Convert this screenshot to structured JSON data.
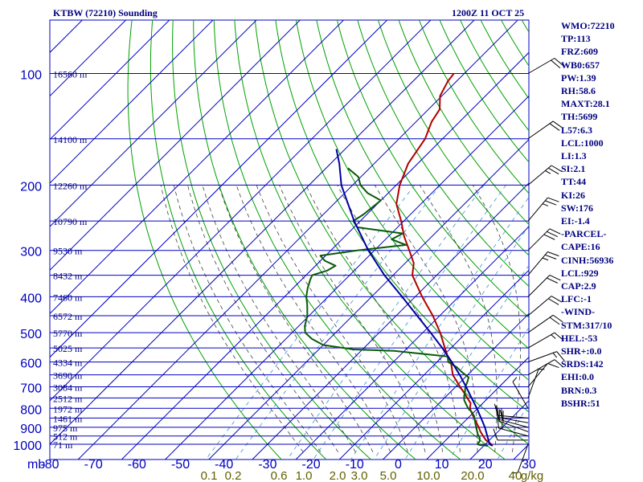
{
  "header": {
    "station": "KTBW (72210) Sounding",
    "time": "1200Z 11 OCT 25"
  },
  "indices": [
    "WMO:72210",
    "TP:113",
    "FRZ:609",
    "WB0:657",
    "PW:1.39",
    "RH:58.6",
    "MAXT:28.1",
    "TH:5699",
    "L57:6.3",
    "LCL:1000",
    "LI:1.3",
    "SI:2.1",
    "TT:44",
    "KI:26",
    "SW:176",
    "EI:-1.4",
    "-PARCEL-",
    "CAPE:16",
    "CINH:56936",
    "LCL:929",
    "CAP:2.9",
    "LFC:-1",
    "-WIND-",
    "STM:317/10",
    "HEL:-53",
    "SHR+:0.0",
    "SRDS:142",
    "EHI:0.0",
    "BRN:0.3",
    "BSHR:51"
  ],
  "chart_data": {
    "type": "line",
    "subtype": "skew-t log-p sounding",
    "x_axis_unit_label": "mb",
    "x_ticks": [
      "-80",
      "-70",
      "-60",
      "-50",
      "-40",
      "-30",
      "-20",
      "-10",
      "0",
      "10",
      "20",
      "30"
    ],
    "x_range_c": [
      -80,
      30
    ],
    "pressure_ticks": [
      "100",
      "200",
      "300",
      "400",
      "500",
      "600",
      "700",
      "800",
      "900",
      "1000"
    ],
    "pressure_range_mb": [
      100,
      1050
    ],
    "pressure_gridlines_mb": [
      100,
      150,
      200,
      250,
      300,
      350,
      400,
      450,
      500,
      550,
      600,
      650,
      700,
      750,
      800,
      850,
      900,
      950,
      1000
    ],
    "height_labels": [
      {
        "p": 100,
        "label": "16560 m"
      },
      {
        "p": 150,
        "label": "14100 m"
      },
      {
        "p": 200,
        "label": "12260 m"
      },
      {
        "p": 250,
        "label": "10790 m"
      },
      {
        "p": 300,
        "label": "9530 m"
      },
      {
        "p": 350,
        "label": "8432 m"
      },
      {
        "p": 400,
        "label": "7460 m"
      },
      {
        "p": 450,
        "label": "6572 m"
      },
      {
        "p": 500,
        "label": "5770 m"
      },
      {
        "p": 550,
        "label": "5025 m"
      },
      {
        "p": 600,
        "label": "4334 m"
      },
      {
        "p": 650,
        "label": "3690 m"
      },
      {
        "p": 700,
        "label": "3084 m"
      },
      {
        "p": 750,
        "label": "2512 m"
      },
      {
        "p": 800,
        "label": "1972 m"
      },
      {
        "p": 850,
        "label": "1461 m"
      },
      {
        "p": 900,
        "label": "975 m"
      },
      {
        "p": 950,
        "label": "512 m"
      },
      {
        "p": 1000,
        "label": "71 m"
      }
    ],
    "mixing_ratio_labels": [
      "0.1",
      "0.2",
      "0.6",
      "1.0",
      "2.0",
      "3.0",
      "5.0",
      "10.0",
      "20.0",
      "40",
      "g/kg"
    ],
    "mixing_ratios_gkg": [
      0.1,
      0.2,
      0.6,
      1.0,
      2.0,
      3.0,
      5.0,
      10.0,
      20.0,
      40
    ],
    "series": [
      {
        "name": "temperature",
        "color": "#b00000",
        "points": [
          [
            1010,
            22.0
          ],
          [
            1000,
            21.4
          ],
          [
            975,
            19.2
          ],
          [
            950,
            17.6
          ],
          [
            925,
            16.0
          ],
          [
            900,
            14.6
          ],
          [
            875,
            13.0
          ],
          [
            850,
            11.4
          ],
          [
            825,
            9.8
          ],
          [
            800,
            8.2
          ],
          [
            775,
            7.2
          ],
          [
            750,
            5.2
          ],
          [
            725,
            3.2
          ],
          [
            700,
            1.0
          ],
          [
            650,
            -3.4
          ],
          [
            600,
            -6.8
          ],
          [
            575,
            -9.2
          ],
          [
            550,
            -11.4
          ],
          [
            500,
            -16.0
          ],
          [
            450,
            -21.6
          ],
          [
            400,
            -28.4
          ],
          [
            350,
            -35.6
          ],
          [
            325,
            -38.0
          ],
          [
            300,
            -42.0
          ],
          [
            275,
            -46.4
          ],
          [
            250,
            -50.6
          ],
          [
            225,
            -55.6
          ],
          [
            200,
            -59.2
          ],
          [
            175,
            -62.2
          ],
          [
            150,
            -64.0
          ],
          [
            135,
            -66.4
          ],
          [
            125,
            -67.4
          ],
          [
            115,
            -70.4
          ],
          [
            105,
            -72.0
          ],
          [
            100,
            -72.4
          ]
        ]
      },
      {
        "name": "dewpoint",
        "color": "#0a5a0a",
        "points": [
          [
            1010,
            21.0
          ],
          [
            1005,
            19.0
          ],
          [
            1000,
            18.2
          ],
          [
            980,
            18.0
          ],
          [
            960,
            17.2
          ],
          [
            940,
            16.0
          ],
          [
            920,
            15.0
          ],
          [
            900,
            14.0
          ],
          [
            880,
            13.0
          ],
          [
            860,
            12.0
          ],
          [
            840,
            11.0
          ],
          [
            820,
            9.6
          ],
          [
            800,
            7.8
          ],
          [
            780,
            6.4
          ],
          [
            760,
            5.0
          ],
          [
            740,
            4.0
          ],
          [
            720,
            3.2
          ],
          [
            700,
            2.2
          ],
          [
            680,
            1.6
          ],
          [
            660,
            0.8
          ],
          [
            640,
            -1.8
          ],
          [
            620,
            -4.2
          ],
          [
            600,
            -7.4
          ],
          [
            580,
            -8.8
          ],
          [
            560,
            -22.4
          ],
          [
            555,
            -32.0
          ],
          [
            540,
            -40.0
          ],
          [
            520,
            -44.0
          ],
          [
            500,
            -47.0
          ],
          [
            480,
            -48.6
          ],
          [
            450,
            -50.4
          ],
          [
            420,
            -53.0
          ],
          [
            400,
            -55.0
          ],
          [
            380,
            -56.6
          ],
          [
            360,
            -58.0
          ],
          [
            350,
            -58.6
          ],
          [
            340,
            -56.2
          ],
          [
            330,
            -55.4
          ],
          [
            320,
            -59.0
          ],
          [
            310,
            -61.2
          ],
          [
            300,
            -54.0
          ],
          [
            290,
            -44.0
          ],
          [
            280,
            -48.6
          ],
          [
            270,
            -47.4
          ],
          [
            260,
            -59.2
          ],
          [
            250,
            -61.6
          ],
          [
            240,
            -60.8
          ],
          [
            220,
            -60.0
          ],
          [
            210,
            -64.8
          ],
          [
            200,
            -68.2
          ],
          [
            190,
            -70.6
          ],
          [
            180,
            -75.0
          ]
        ]
      },
      {
        "name": "parcel",
        "color": "#0000a0",
        "points": [
          [
            1010,
            22.0
          ],
          [
            1000,
            21.0
          ],
          [
            929,
            17.5
          ],
          [
            900,
            16.0
          ],
          [
            850,
            13.0
          ],
          [
            800,
            9.8
          ],
          [
            750,
            6.2
          ],
          [
            700,
            2.4
          ],
          [
            650,
            -1.8
          ],
          [
            600,
            -6.6
          ],
          [
            550,
            -12.0
          ],
          [
            500,
            -18.2
          ],
          [
            450,
            -25.2
          ],
          [
            400,
            -33.0
          ],
          [
            350,
            -42.0
          ],
          [
            300,
            -51.4
          ],
          [
            250,
            -61.4
          ],
          [
            200,
            -72.6
          ],
          [
            175,
            -78.0
          ],
          [
            160,
            -82.0
          ]
        ]
      }
    ],
    "winds": [
      {
        "p": 1000,
        "dir": 200,
        "spd": 5
      },
      {
        "p": 975,
        "dir": 270,
        "spd": 10
      },
      {
        "p": 950,
        "dir": 285,
        "spd": 15
      },
      {
        "p": 925,
        "dir": 290,
        "spd": 20
      },
      {
        "p": 900,
        "dir": 285,
        "spd": 20
      },
      {
        "p": 875,
        "dir": 280,
        "spd": 15
      },
      {
        "p": 850,
        "dir": 275,
        "spd": 15
      },
      {
        "p": 800,
        "dir": 330,
        "spd": 5
      },
      {
        "p": 750,
        "dir": 20,
        "spd": 5
      },
      {
        "p": 700,
        "dir": 40,
        "spd": 10
      },
      {
        "p": 650,
        "dir": 60,
        "spd": 10
      },
      {
        "p": 600,
        "dir": 70,
        "spd": 15
      },
      {
        "p": 550,
        "dir": 60,
        "spd": 15
      },
      {
        "p": 500,
        "dir": 55,
        "spd": 20
      },
      {
        "p": 450,
        "dir": 50,
        "spd": 20
      },
      {
        "p": 400,
        "dir": 45,
        "spd": 20
      },
      {
        "p": 350,
        "dir": 40,
        "spd": 25
      },
      {
        "p": 300,
        "dir": 45,
        "spd": 30
      },
      {
        "p": 250,
        "dir": 40,
        "spd": 25
      },
      {
        "p": 200,
        "dir": 50,
        "spd": 25
      },
      {
        "p": 150,
        "dir": 55,
        "spd": 20
      },
      {
        "p": 100,
        "dir": 60,
        "spd": 20
      }
    ]
  }
}
